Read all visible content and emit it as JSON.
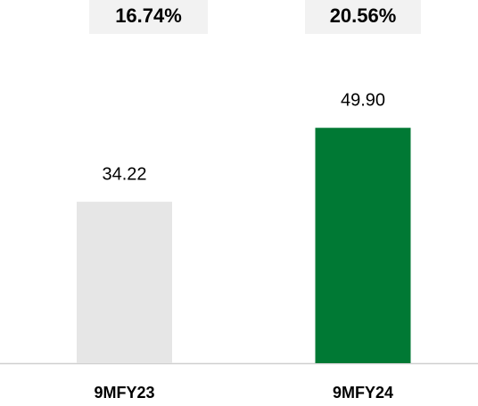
{
  "chart_data": {
    "type": "bar",
    "categories": [
      "9MFY23",
      "9MFY24"
    ],
    "values": [
      34.22,
      49.9
    ],
    "value_labels": [
      "34.22",
      "49.90"
    ],
    "colors": [
      "#e6e6e6",
      "#007934"
    ],
    "annotations": [
      "16.74%",
      "20.56%"
    ],
    "ylim": [
      0,
      77
    ]
  }
}
